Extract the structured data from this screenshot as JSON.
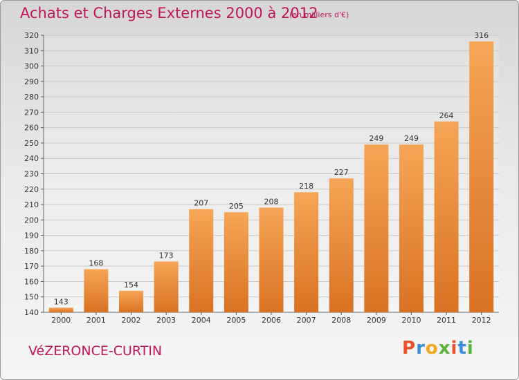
{
  "header": {
    "title": "Achats et Charges Externes 2000 à 2012",
    "subtitle": "(en milliers d'€)"
  },
  "footer": {
    "commune": "VéZERONCE-CURTIN",
    "logo_letters": [
      "P",
      "r",
      "o",
      "x",
      "i",
      "t",
      "i"
    ],
    "logo_colors": [
      "#e8532a",
      "#3a8fd6",
      "#f2a81d",
      "#5ab43c",
      "#e8532a",
      "#3a8fd6",
      "#5ab43c"
    ]
  },
  "colors": {
    "bar_top": "#f6a556",
    "bar_bottom": "#d97224",
    "grid": "#c8c8c8"
  },
  "chart_data": {
    "type": "bar",
    "title": "Achats et Charges Externes 2000 à 2012",
    "subtitle": "(en milliers d'€)",
    "xlabel": "",
    "ylabel": "",
    "categories": [
      "2000",
      "2001",
      "2002",
      "2003",
      "2004",
      "2005",
      "2006",
      "2007",
      "2008",
      "2009",
      "2010",
      "2011",
      "2012"
    ],
    "values": [
      143,
      168,
      154,
      173,
      207,
      205,
      208,
      218,
      227,
      249,
      249,
      264,
      316
    ],
    "ylim": [
      140,
      320
    ],
    "yticks": [
      140,
      150,
      160,
      170,
      180,
      190,
      200,
      210,
      220,
      230,
      240,
      250,
      260,
      270,
      280,
      290,
      300,
      310,
      320
    ],
    "grid": true,
    "data_labels": true
  }
}
